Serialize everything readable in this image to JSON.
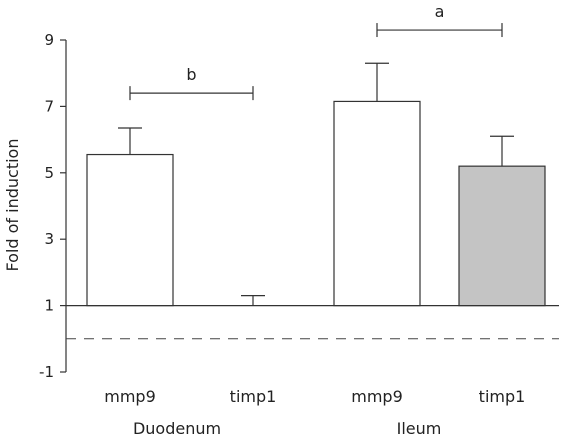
{
  "chart_data": {
    "type": "bar",
    "ylabel": "Fold of induction",
    "ylim": [
      -1,
      9
    ],
    "yticks": [
      -1,
      1,
      3,
      5,
      7,
      9
    ],
    "baseline": 1,
    "reference_line": 0,
    "grid": false,
    "categories": [
      "mmp9",
      "timp1",
      "mmp9",
      "timp1"
    ],
    "groups": [
      {
        "label": "Duodenum",
        "members": [
          0,
          1
        ]
      },
      {
        "label": "Ileum",
        "members": [
          2,
          3
        ]
      }
    ],
    "values": [
      5.55,
      1.0,
      7.15,
      5.2
    ],
    "errors": [
      0.8,
      0.3,
      1.15,
      0.9
    ],
    "bar_colors": [
      "#ffffff",
      "#ffffff",
      "#ffffff",
      "#c4c4c4"
    ],
    "significance": [
      {
        "label": "b",
        "from": 0,
        "to": 1,
        "y": 7.4
      },
      {
        "label": "a",
        "from": 2,
        "to": 3,
        "y": 9.3
      }
    ]
  }
}
